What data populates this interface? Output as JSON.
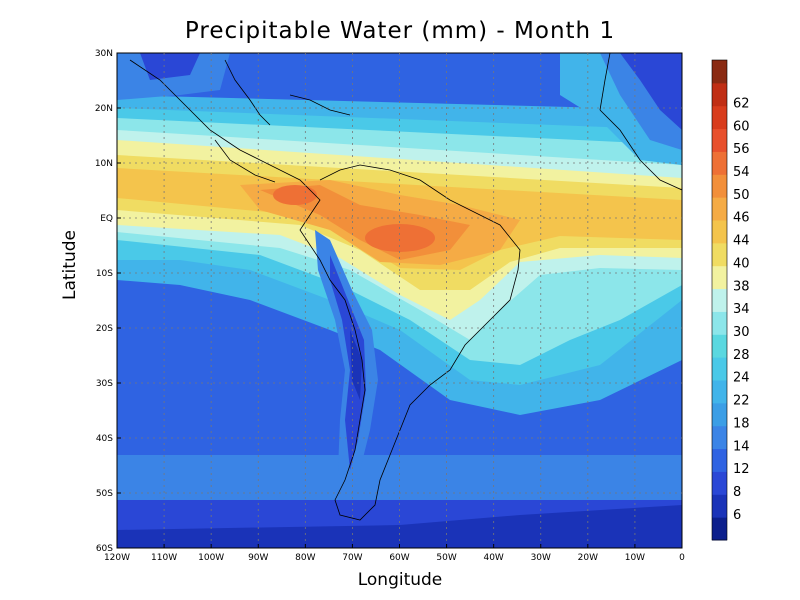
{
  "chart_data": {
    "type": "heatmap",
    "title": "Precipitable Water (mm) - Month 1",
    "xlabel": "Longitude",
    "ylabel": "Latitude",
    "xlim": [
      -120,
      0
    ],
    "ylim": [
      -60,
      30
    ],
    "x_ticks": [
      "120W",
      "110W",
      "100W",
      "90W",
      "80W",
      "70W",
      "60W",
      "50W",
      "40W",
      "30W",
      "20W",
      "10W",
      "0"
    ],
    "y_ticks": [
      "30N",
      "20N",
      "10N",
      "EQ",
      "10S",
      "20S",
      "30S",
      "40S",
      "50S",
      "60S"
    ],
    "grid": true,
    "colorbar": {
      "placement": "right",
      "labels": [
        "6",
        "8",
        "12",
        "14",
        "18",
        "22",
        "24",
        "28",
        "30",
        "34",
        "38",
        "40",
        "44",
        "46",
        "50",
        "54",
        "56",
        "60",
        "62"
      ],
      "colors": [
        "#0c1f8c",
        "#1a33b8",
        "#2a47d6",
        "#2f63e2",
        "#3b84e6",
        "#3b9ee6",
        "#41b4ea",
        "#4ac9e8",
        "#5ad8e0",
        "#8ce6ea",
        "#bff2ec",
        "#f2f2a0",
        "#f0dc62",
        "#f4c44c",
        "#f5ab45",
        "#f28f3a",
        "#ee7035",
        "#e8502c",
        "#d83c1c",
        "#c02e14",
        "#8a2a12"
      ]
    }
  }
}
